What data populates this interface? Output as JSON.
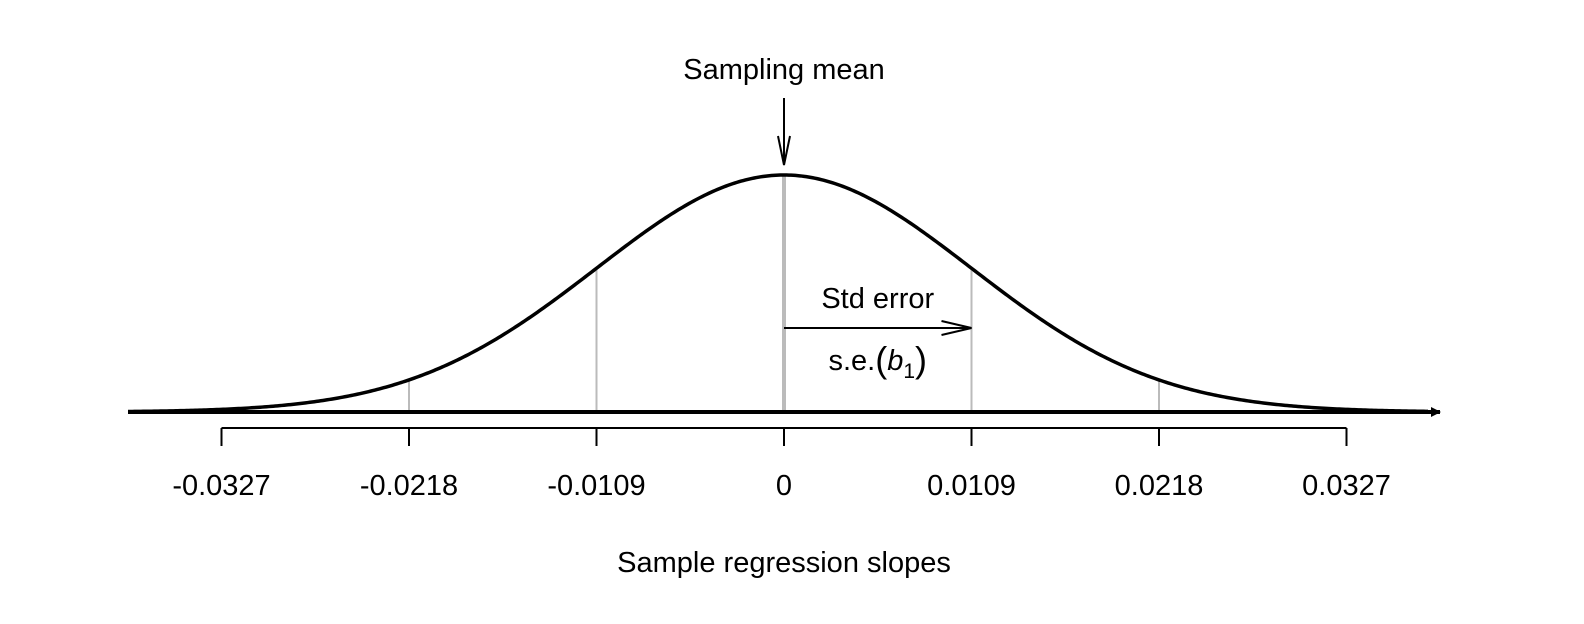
{
  "chart_data": {
    "type": "area",
    "distribution": "normal",
    "mean": 0,
    "std_error": 0.0109,
    "xlim": [
      -0.04,
      0.035
    ],
    "ticks": [
      -0.0327,
      -0.0218,
      -0.0109,
      0,
      0.0109,
      0.0218,
      0.0327
    ],
    "tick_labels": [
      "-0.0327",
      "-0.0218",
      "-0.0109",
      "0",
      "0.0109",
      "0.0218",
      "0.0327"
    ],
    "xlabel": "Sample regression slopes",
    "grid": false,
    "annotations": {
      "mean_label": "Sampling mean",
      "se_label": "Std error",
      "se_formula_prefix": "s.e.",
      "se_formula_open": "(",
      "se_formula_var": "b",
      "se_formula_sub": "1",
      "se_formula_close": ")"
    },
    "colors": {
      "curve": "#000000",
      "reference_lines": "#bbbbbb",
      "axis": "#000000"
    }
  }
}
